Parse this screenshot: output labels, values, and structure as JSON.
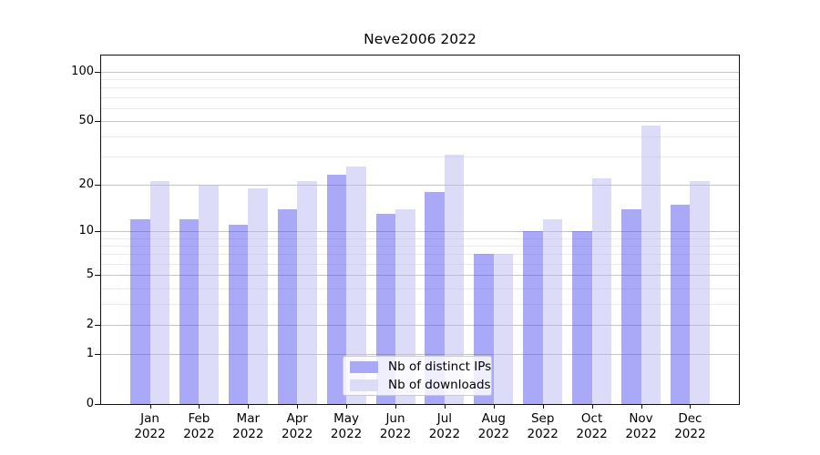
{
  "title": "Neve2006 2022",
  "colors": {
    "background": "#ffffff",
    "ips_bar": "#a9a9f7",
    "ips_bar_rgba": "rgba(83,83,240,0.5)",
    "downloads_bar": "#dcdcf9",
    "downloads_bar_rgba": "rgba(185,185,243,0.5)",
    "grid_major": "#c4c4c4",
    "grid_minor": "#ebebeb",
    "spine": "#111111"
  },
  "chart_data": {
    "type": "bar",
    "title": "Neve2006 2022",
    "xlabel": "",
    "ylabel": "",
    "categories": [
      "Jan",
      "Feb",
      "Mar",
      "Apr",
      "May",
      "Jun",
      "Jul",
      "Aug",
      "Sep",
      "Oct",
      "Nov",
      "Dec"
    ],
    "category_year": "2022",
    "series": [
      {
        "name": "Nb of distinct IPs",
        "color": "#a9a9f7",
        "values": [
          12,
          12,
          11,
          14,
          23,
          13,
          18,
          7,
          10,
          10,
          14,
          15
        ]
      },
      {
        "name": "Nb of downloads",
        "color": "#dcdcf9",
        "values": [
          21,
          20,
          19,
          21,
          26,
          14,
          31,
          7,
          12,
          22,
          47,
          21
        ]
      }
    ],
    "yscale": "log1p",
    "ylim": [
      0,
      124
    ],
    "y_major_ticks": [
      0,
      1,
      2,
      5,
      10,
      20,
      50,
      100
    ],
    "y_tick_labels": [
      "0",
      "1",
      "2",
      "5",
      "10",
      "20",
      "50",
      "100"
    ],
    "y_minor_gridlines": [
      3,
      4,
      6,
      7,
      8,
      9,
      30,
      40,
      60,
      70,
      80,
      90
    ],
    "grid": "on",
    "legend_position": "lower center (inside plot)"
  },
  "legend": {
    "entries": [
      {
        "label": "Nb of distinct IPs"
      },
      {
        "label": "Nb of downloads"
      }
    ]
  }
}
